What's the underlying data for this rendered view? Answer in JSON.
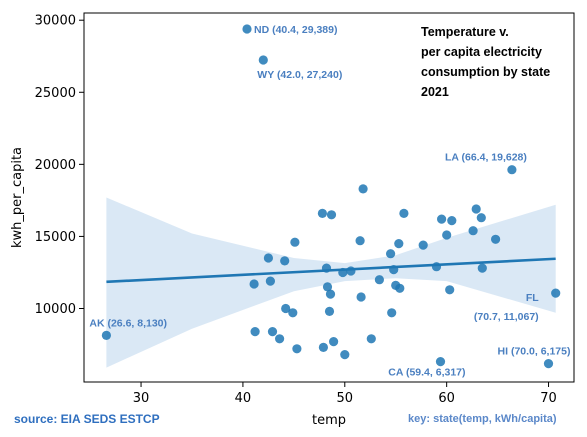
{
  "chart_data": {
    "type": "scatter",
    "title_lines": [
      "Temperature v.",
      "per capita electricity",
      "consumption by state",
      "2021"
    ],
    "xlabel": "temp",
    "ylabel": "kwh_per_capita",
    "xlim": [
      24.4,
      72.5
    ],
    "ylim": [
      4900,
      30500
    ],
    "xticks": [
      30,
      40,
      50,
      60,
      70
    ],
    "yticks": [
      10000,
      15000,
      20000,
      25000,
      30000
    ],
    "point_color": "#1f77b4",
    "band_color": "#c6dbef",
    "points": [
      {
        "x": 26.6,
        "y": 8130
      },
      {
        "x": 40.4,
        "y": 29389
      },
      {
        "x": 42.0,
        "y": 27240
      },
      {
        "x": 66.4,
        "y": 19628
      },
      {
        "x": 70.7,
        "y": 11067
      },
      {
        "x": 70.0,
        "y": 6175
      },
      {
        "x": 59.4,
        "y": 6317
      },
      {
        "x": 41.1,
        "y": 11700
      },
      {
        "x": 41.2,
        "y": 8400
      },
      {
        "x": 42.5,
        "y": 13500
      },
      {
        "x": 42.7,
        "y": 11900
      },
      {
        "x": 42.9,
        "y": 8400
      },
      {
        "x": 43.6,
        "y": 7900
      },
      {
        "x": 44.1,
        "y": 13300
      },
      {
        "x": 44.2,
        "y": 10000
      },
      {
        "x": 44.9,
        "y": 9700
      },
      {
        "x": 45.1,
        "y": 14600
      },
      {
        "x": 45.3,
        "y": 7200
      },
      {
        "x": 47.8,
        "y": 16600
      },
      {
        "x": 47.9,
        "y": 7300
      },
      {
        "x": 48.2,
        "y": 12800
      },
      {
        "x": 48.3,
        "y": 11500
      },
      {
        "x": 48.5,
        "y": 9800
      },
      {
        "x": 48.6,
        "y": 11000
      },
      {
        "x": 48.7,
        "y": 16500
      },
      {
        "x": 48.9,
        "y": 7700
      },
      {
        "x": 49.8,
        "y": 12500
      },
      {
        "x": 50.0,
        "y": 6800
      },
      {
        "x": 50.6,
        "y": 12600
      },
      {
        "x": 51.5,
        "y": 14700
      },
      {
        "x": 51.6,
        "y": 10800
      },
      {
        "x": 51.8,
        "y": 18300
      },
      {
        "x": 52.6,
        "y": 7900
      },
      {
        "x": 53.4,
        "y": 12000
      },
      {
        "x": 54.5,
        "y": 13800
      },
      {
        "x": 54.6,
        "y": 9700
      },
      {
        "x": 54.8,
        "y": 12700
      },
      {
        "x": 55.0,
        "y": 11600
      },
      {
        "x": 55.3,
        "y": 14500
      },
      {
        "x": 55.4,
        "y": 11400
      },
      {
        "x": 55.8,
        "y": 16600
      },
      {
        "x": 57.7,
        "y": 14400
      },
      {
        "x": 59.0,
        "y": 12900
      },
      {
        "x": 59.5,
        "y": 16200
      },
      {
        "x": 60.0,
        "y": 15100
      },
      {
        "x": 60.3,
        "y": 11300
      },
      {
        "x": 60.5,
        "y": 16100
      },
      {
        "x": 62.6,
        "y": 15400
      },
      {
        "x": 62.9,
        "y": 16900
      },
      {
        "x": 63.4,
        "y": 16300
      },
      {
        "x": 63.5,
        "y": 12800
      },
      {
        "x": 64.8,
        "y": 14800
      }
    ],
    "regression": {
      "x_start": 26.6,
      "y_start": 11850,
      "x_end": 70.7,
      "y_end": 13450
    },
    "confidence_band": {
      "x": [
        26.6,
        35,
        45,
        50,
        55,
        60,
        70.7
      ],
      "upper": [
        17700,
        15200,
        13500,
        13150,
        13700,
        14900,
        17200
      ],
      "lower": [
        5900,
        8600,
        11200,
        11900,
        12100,
        11900,
        9700
      ]
    },
    "annotations": [
      {
        "text": "AK (26.6, 8,130)",
        "x": 26.6,
        "y": 8130,
        "anchor": "start",
        "dx": -17,
        "dy": -9
      },
      {
        "text": "ND (40.4, 29,389)",
        "x": 40.4,
        "y": 29389,
        "anchor": "start",
        "dx": 7,
        "dy": 4
      },
      {
        "text": "WY (42.0, 27,240)",
        "x": 42.0,
        "y": 27240,
        "anchor": "start",
        "dx": -6,
        "dy": 18
      },
      {
        "text": "LA (66.4, 19,628)",
        "x": 66.4,
        "y": 19628,
        "anchor": "end",
        "dx": 15,
        "dy": -9
      },
      {
        "text": "FL",
        "x": 70.7,
        "y": 11067,
        "anchor": "end",
        "dx": -17,
        "dy": 8
      },
      {
        "text": "(70.7, 11,067)",
        "x": 70.7,
        "y": 11067,
        "anchor": "end",
        "dx": -17,
        "dy": 27
      },
      {
        "text": "HI (70.0, 6,175)",
        "x": 70.0,
        "y": 6175,
        "anchor": "end",
        "dx": 22,
        "dy": -9
      },
      {
        "text": "CA (59.4, 6,317)",
        "x": 59.4,
        "y": 6317,
        "anchor": "end",
        "dx": 25,
        "dy": 14
      }
    ]
  },
  "footer": {
    "source": "source: EIA SEDS ESTCP",
    "key": "key: state(temp, kWh/capita)"
  }
}
